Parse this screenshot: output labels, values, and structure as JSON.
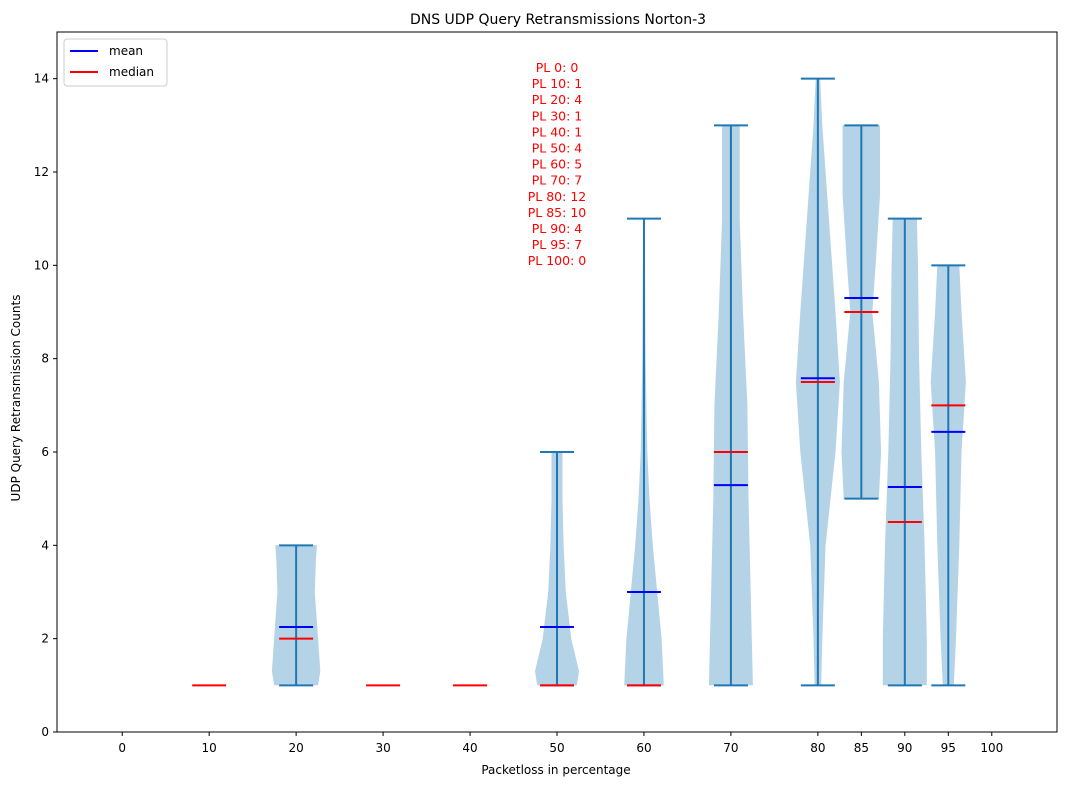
{
  "chart_data": {
    "type": "violin",
    "title": "DNS UDP Query Retransmissions Norton-3",
    "xlabel": "Packetloss in percentage",
    "ylabel": "UDP Query Retransmission Counts",
    "ylim": [
      0,
      15
    ],
    "xlim": [
      -7.5,
      107.5
    ],
    "x_ticks": [
      0,
      10,
      20,
      30,
      40,
      50,
      60,
      70,
      80,
      85,
      90,
      95,
      100
    ],
    "y_ticks": [
      0,
      2,
      4,
      6,
      8,
      10,
      12,
      14
    ],
    "grid": false,
    "legend": {
      "position": "top-left",
      "entries": [
        {
          "label": "mean",
          "color": "#0000ff"
        },
        {
          "label": "median",
          "color": "#ff0000"
        }
      ]
    },
    "colors": {
      "body": "#b5d3e7",
      "stem": "#1f77b4",
      "mean": "#0000ff",
      "median": "#ff0000",
      "annotation": "#ff0000"
    },
    "annotation_lines": [
      "PL 0: 0",
      "PL 10: 1",
      "PL 20: 4",
      "PL 30: 1",
      "PL 40: 1",
      "PL 50: 4",
      "PL 60: 5",
      "PL 70: 7",
      "PL 80: 12",
      "PL 85: 10",
      "PL 90: 4",
      "PL 95: 7",
      "PL 100: 0"
    ],
    "violins": [
      {
        "x": 10,
        "min": 1,
        "max": 1,
        "mean": 1,
        "median": 1,
        "profile": []
      },
      {
        "x": 20,
        "min": 1,
        "max": 4,
        "mean": 2.25,
        "median": 2,
        "profile": [
          [
            1,
            2.0
          ],
          [
            1.3,
            2.2
          ],
          [
            2,
            2.0
          ],
          [
            3,
            1.7
          ],
          [
            3.7,
            1.8
          ],
          [
            4,
            1.9
          ]
        ]
      },
      {
        "x": 30,
        "min": 1,
        "max": 1,
        "mean": 1,
        "median": 1,
        "profile": []
      },
      {
        "x": 40,
        "min": 1,
        "max": 1,
        "mean": 1,
        "median": 1,
        "profile": []
      },
      {
        "x": 50,
        "min": 1,
        "max": 6,
        "mean": 2.25,
        "median": 1,
        "profile": [
          [
            1,
            1.8
          ],
          [
            1.3,
            2.0
          ],
          [
            2,
            1.3
          ],
          [
            3,
            0.8
          ],
          [
            4,
            0.6
          ],
          [
            5,
            0.5
          ],
          [
            6,
            0.5
          ]
        ]
      },
      {
        "x": 60,
        "min": 1,
        "max": 11,
        "mean": 3,
        "median": 1,
        "profile": [
          [
            1,
            1.8
          ],
          [
            2,
            1.6
          ],
          [
            3,
            1.2
          ],
          [
            4,
            0.8
          ],
          [
            5,
            0.5
          ],
          [
            6,
            0.3
          ],
          [
            8,
            0.15
          ],
          [
            10,
            0.1
          ],
          [
            11,
            0.05
          ]
        ]
      },
      {
        "x": 70,
        "min": 1,
        "max": 13,
        "mean": 5.29,
        "median": 6,
        "profile": [
          [
            1,
            2.0
          ],
          [
            3,
            1.8
          ],
          [
            5,
            1.6
          ],
          [
            7,
            1.5
          ],
          [
            9,
            1.1
          ],
          [
            11,
            0.8
          ],
          [
            12.5,
            0.8
          ],
          [
            13,
            0.8
          ]
        ]
      },
      {
        "x": 80,
        "min": 1,
        "max": 14,
        "mean": 7.58,
        "median": 7.5,
        "profile": [
          [
            1,
            0.3
          ],
          [
            2,
            0.4
          ],
          [
            4,
            0.7
          ],
          [
            6,
            1.6
          ],
          [
            7.5,
            2.0
          ],
          [
            9,
            1.6
          ],
          [
            11,
            1.0
          ],
          [
            13,
            0.4
          ],
          [
            14,
            0.2
          ]
        ]
      },
      {
        "x": 85,
        "min": 5,
        "max": 13,
        "mean": 9.3,
        "median": 9,
        "profile": [
          [
            5,
            1.6
          ],
          [
            6,
            1.8
          ],
          [
            7.5,
            1.6
          ],
          [
            9,
            1.0
          ],
          [
            10,
            1.3
          ],
          [
            11.5,
            1.7
          ],
          [
            13,
            1.7
          ]
        ]
      },
      {
        "x": 90,
        "min": 1,
        "max": 11,
        "mean": 5.25,
        "median": 4.5,
        "profile": [
          [
            1,
            2.0
          ],
          [
            2,
            2.0
          ],
          [
            4,
            1.8
          ],
          [
            6,
            1.5
          ],
          [
            8,
            1.3
          ],
          [
            10,
            1.2
          ],
          [
            11,
            1.1
          ]
        ]
      },
      {
        "x": 95,
        "min": 1,
        "max": 10,
        "mean": 6.43,
        "median": 7,
        "profile": [
          [
            1,
            0.5
          ],
          [
            2,
            0.7
          ],
          [
            4,
            1.0
          ],
          [
            6,
            1.2
          ],
          [
            7.5,
            1.6
          ],
          [
            9,
            1.2
          ],
          [
            10,
            1.0
          ]
        ]
      }
    ]
  }
}
